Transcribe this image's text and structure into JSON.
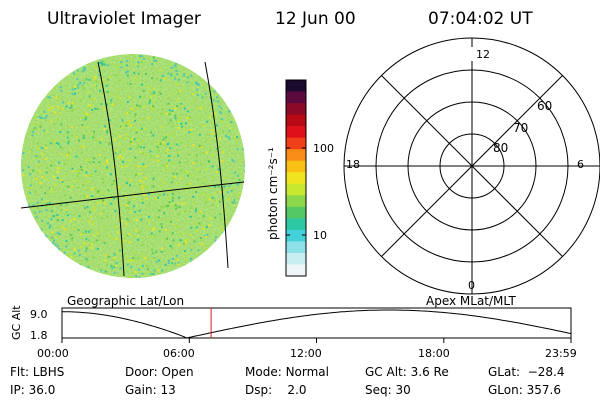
{
  "header": {
    "instrument": "Ultraviolet Imager",
    "date": "12 Jun 00",
    "time": "07:04:02 UT"
  },
  "colors": {
    "disk_base": "#9cd64a",
    "disk_edge": "#4ec8b4",
    "grid_line": "#000000",
    "marker": "#e0181a"
  },
  "colorbar": {
    "label": "photon cm⁻²s⁻¹",
    "tick_labels": [
      "100",
      "10"
    ],
    "scale": "log",
    "colors_top_to_bottom": [
      "#1a0a2e",
      "#5a0a3c",
      "#8a0a28",
      "#b80a14",
      "#e0101a",
      "#f0401a",
      "#f88c14",
      "#f8c014",
      "#f0e420",
      "#c8e830",
      "#8cd84a",
      "#54c864",
      "#2cc8a4",
      "#44d0d8",
      "#8ce0e8",
      "#c8eef2",
      "#eef6f8"
    ]
  },
  "left_panel": {
    "caption": "Geographic Lat/Lon"
  },
  "right_panel": {
    "caption": "Apex MLat/MLT",
    "mlt_labels": {
      "top": "12",
      "bottom": "0",
      "left": "18",
      "right": "6"
    },
    "mlat_labels": [
      "60",
      "70",
      "80"
    ]
  },
  "altitude_plot": {
    "y_label": "GC Alt",
    "y_ticks": [
      "9.0",
      "1.8"
    ],
    "x_ticks": [
      "00:00",
      "06:00",
      "12:00",
      "18:00",
      "23:59"
    ],
    "current_time_fraction": 0.293
  },
  "footer": {
    "row1": [
      {
        "label": "Flt:",
        "value": "LBHS"
      },
      {
        "label": "Door:",
        "value": "Open"
      },
      {
        "label": "Mode:",
        "value": "Normal"
      },
      {
        "label": "GC Alt:",
        "value": "3.6 Re"
      },
      {
        "label": "GLat:",
        "value": "−28.4"
      }
    ],
    "row2": [
      {
        "label": "IP:",
        "value": "36.0"
      },
      {
        "label": "Gain:",
        "value": "13"
      },
      {
        "label": "Dsp:",
        "value": "2.0"
      },
      {
        "label": "Seq:",
        "value": "30"
      },
      {
        "label": "GLon:",
        "value": "357.6"
      }
    ]
  }
}
